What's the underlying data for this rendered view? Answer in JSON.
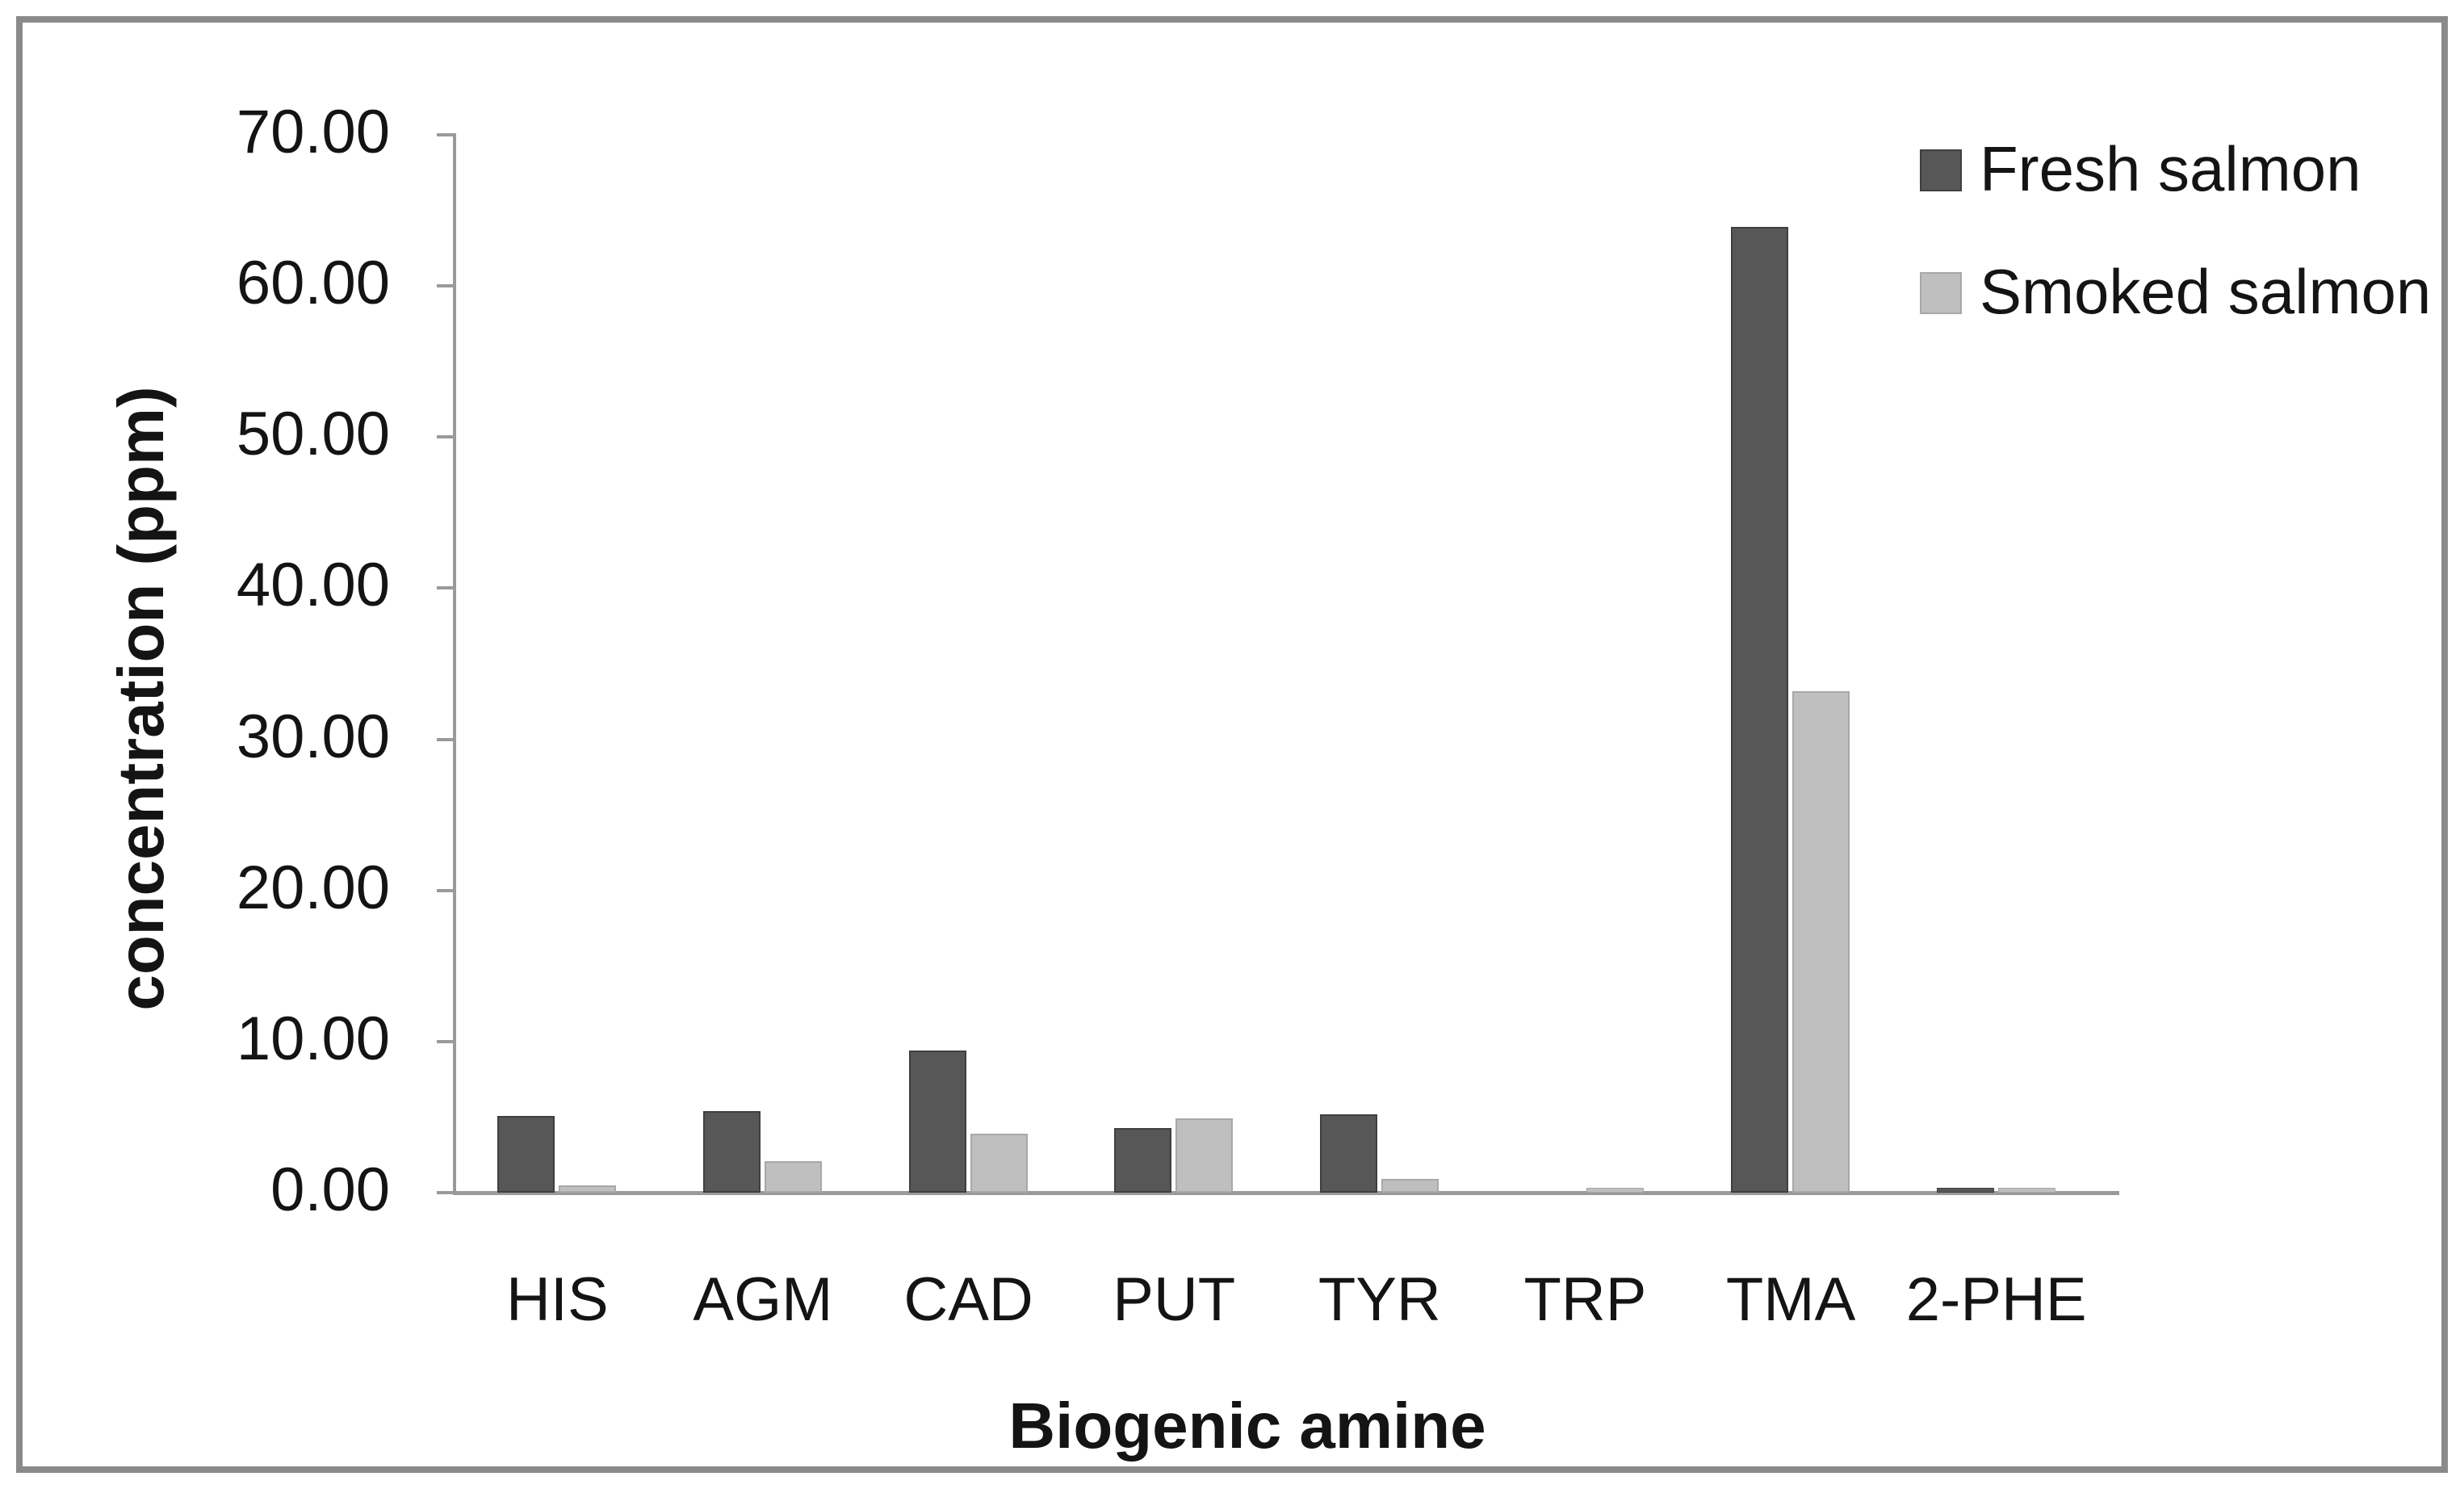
{
  "chart_data": {
    "type": "bar",
    "title": "",
    "categories": [
      "HIS",
      "AGM",
      "CAD",
      "PUT",
      "TYR",
      "TRP",
      "TMA",
      "2-PHE"
    ],
    "series": [
      {
        "name": "Fresh salmon",
        "color": "#575757",
        "border_color": "#3f3f3f",
        "values": [
          5.1,
          5.4,
          9.4,
          4.3,
          5.2,
          0.0,
          63.9,
          0.3
        ]
      },
      {
        "name": "Smoked salmon",
        "color": "#bfbfbf",
        "border_color": "#a8a8a8",
        "values": [
          0.5,
          2.1,
          3.9,
          4.9,
          0.9,
          0.3,
          33.2,
          0.3
        ]
      }
    ],
    "xlabel": "Biogenic amine",
    "ylabel": "concentration (ppm)",
    "ylim": [
      0,
      70
    ],
    "ytick_step": 10,
    "ytick_labels": [
      "0.00",
      "10.00",
      "20.00",
      "30.00",
      "40.00",
      "50.00",
      "60.00",
      "70.00"
    ],
    "grid": false,
    "legend_position": "top-right"
  },
  "figure": {
    "frame_color": "#8a8a8a",
    "axis_color": "#9a9a9a",
    "background": "#ffffff"
  }
}
